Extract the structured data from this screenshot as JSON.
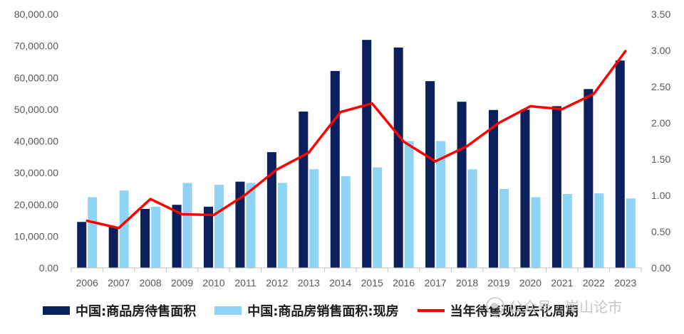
{
  "chart_data": {
    "type": "bar+line",
    "categories": [
      "2006",
      "2007",
      "2008",
      "2009",
      "2010",
      "2011",
      "2012",
      "2013",
      "2014",
      "2015",
      "2016",
      "2017",
      "2018",
      "2019",
      "2020",
      "2021",
      "2022",
      "2023"
    ],
    "series": [
      {
        "name": "中国:商品房待售面积",
        "type": "bar",
        "axis": "left",
        "color": "#0b1f5c",
        "values": [
          14500,
          13000,
          18600,
          19900,
          19300,
          27200,
          36500,
          49300,
          62100,
          71900,
          69500,
          58900,
          52400,
          49800,
          49900,
          51000,
          56400,
          65400
        ]
      },
      {
        "name": "中国:商品房销售面积:现房",
        "type": "bar",
        "axis": "left",
        "color": "#8fd3f5",
        "values": [
          22300,
          24400,
          19300,
          26800,
          26200,
          26800,
          26800,
          31100,
          28900,
          31700,
          40000,
          40000,
          31100,
          24900,
          22300,
          23300,
          23500,
          21900
        ]
      },
      {
        "name": "当年待售现房去化周期",
        "type": "line",
        "axis": "right",
        "color": "#ff0000",
        "values": [
          0.65,
          0.55,
          0.95,
          0.74,
          0.73,
          1.01,
          1.36,
          1.59,
          2.15,
          2.27,
          1.74,
          1.47,
          1.68,
          2.0,
          2.23,
          2.19,
          2.4,
          2.99
        ]
      }
    ],
    "y_left": {
      "min": 0,
      "max": 80000,
      "ticks": [
        "0.00",
        "10,000.00",
        "20,000.00",
        "30,000.00",
        "40,000.00",
        "50,000.00",
        "60,000.00",
        "70,000.00",
        "80,000.00"
      ]
    },
    "y_right": {
      "min": 0,
      "max": 3.5,
      "ticks": [
        "0.00",
        "0.50",
        "1.00",
        "1.50",
        "2.00",
        "2.50",
        "3.00",
        "3.50"
      ]
    },
    "grid": false,
    "legend_position": "bottom"
  },
  "watermark": {
    "text": "公众号 · 岸山论市",
    "icon": "wechat-icon"
  }
}
